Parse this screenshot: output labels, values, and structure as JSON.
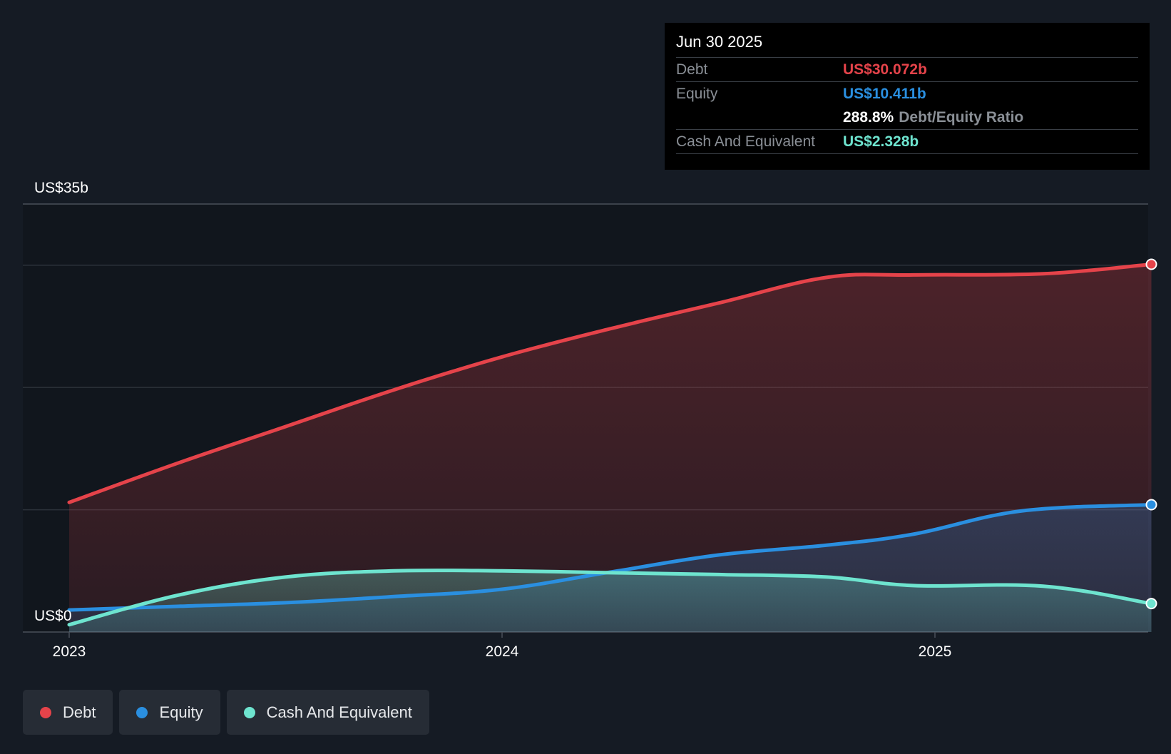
{
  "chart_data": {
    "type": "area",
    "y_max_label": "US$35b",
    "y_min_label": "US$0",
    "ylim": [
      0,
      35
    ],
    "x_ticks": [
      "2023",
      "2024",
      "2025"
    ],
    "x_tick_values": [
      2023.0,
      2024.0,
      2025.0
    ],
    "xlim": [
      2022.9,
      2025.5
    ],
    "grid": true,
    "series": [
      {
        "name": "Debt",
        "color": "#e5434a",
        "points": [
          [
            2023.0,
            10.6
          ],
          [
            2023.25,
            13.8
          ],
          [
            2023.5,
            16.8
          ],
          [
            2023.75,
            19.8
          ],
          [
            2024.0,
            22.5
          ],
          [
            2024.25,
            24.8
          ],
          [
            2024.5,
            26.9
          ],
          [
            2024.75,
            29.0
          ],
          [
            2024.95,
            29.2
          ],
          [
            2025.25,
            29.3
          ],
          [
            2025.5,
            30.072
          ]
        ]
      },
      {
        "name": "Equity",
        "color": "#2a8fe0",
        "points": [
          [
            2023.0,
            1.8
          ],
          [
            2023.25,
            2.1
          ],
          [
            2023.5,
            2.4
          ],
          [
            2023.75,
            2.9
          ],
          [
            2024.0,
            3.5
          ],
          [
            2024.25,
            4.9
          ],
          [
            2024.5,
            6.3
          ],
          [
            2024.75,
            7.1
          ],
          [
            2024.95,
            8.0
          ],
          [
            2025.2,
            9.9
          ],
          [
            2025.5,
            10.411
          ]
        ]
      },
      {
        "name": "Cash And Equivalent",
        "color": "#6ee4cf",
        "points": [
          [
            2023.0,
            0.6
          ],
          [
            2023.25,
            3.0
          ],
          [
            2023.5,
            4.5
          ],
          [
            2023.75,
            5.0
          ],
          [
            2024.0,
            5.0
          ],
          [
            2024.25,
            4.85
          ],
          [
            2024.5,
            4.7
          ],
          [
            2024.75,
            4.5
          ],
          [
            2024.95,
            3.8
          ],
          [
            2025.25,
            3.75
          ],
          [
            2025.5,
            2.328
          ]
        ]
      }
    ],
    "tooltip": {
      "date": "Jun 30 2025",
      "rows": [
        {
          "label": "Debt",
          "value": "US$30.072b",
          "color": "#e5434a"
        },
        {
          "label": "Equity",
          "value": "US$10.411b",
          "color": "#2a8fe0"
        },
        {
          "ratio_value": "288.8%",
          "ratio_label": "Debt/Equity Ratio"
        },
        {
          "label": "Cash And Equivalent",
          "value": "US$2.328b",
          "color": "#6ee4cf"
        }
      ]
    },
    "legend": [
      {
        "label": "Debt",
        "color": "#e5434a"
      },
      {
        "label": "Equity",
        "color": "#2a8fe0"
      },
      {
        "label": "Cash And Equivalent",
        "color": "#6ee4cf"
      }
    ]
  }
}
